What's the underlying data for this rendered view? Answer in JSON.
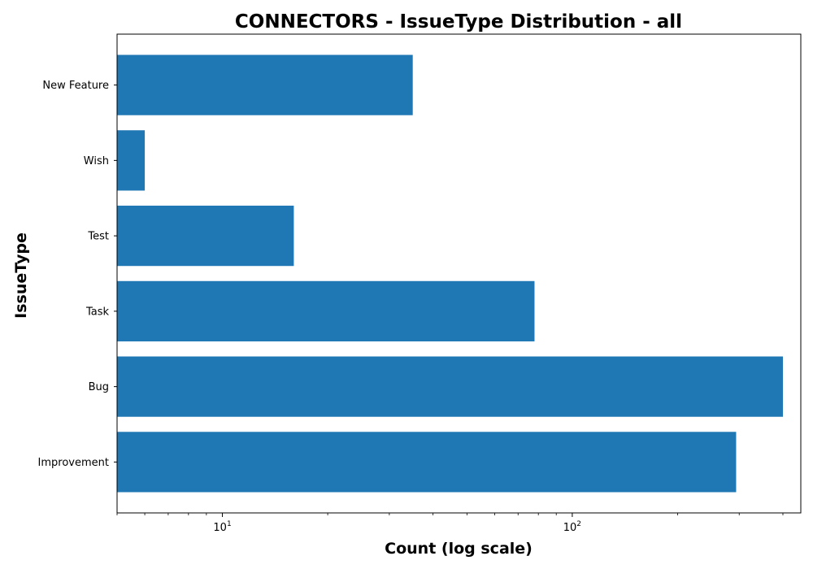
{
  "chart_data": {
    "type": "bar",
    "orientation": "horizontal",
    "title": "CONNECTORS - IssueType Distribution - all",
    "xlabel": "Count (log scale)",
    "ylabel": "IssueType",
    "x_scale": "log",
    "xlim": [
      5,
      450
    ],
    "x_major_ticks": [
      {
        "value": 10,
        "base": "10",
        "exp": "1"
      },
      {
        "value": 100,
        "base": "10",
        "exp": "2"
      }
    ],
    "categories": [
      "Improvement",
      "Bug",
      "Task",
      "Test",
      "Wish",
      "New Feature"
    ],
    "values": [
      294,
      400,
      78,
      16,
      6,
      35
    ],
    "bar_color": "#1f77b4",
    "grid": false,
    "legend": "none"
  }
}
